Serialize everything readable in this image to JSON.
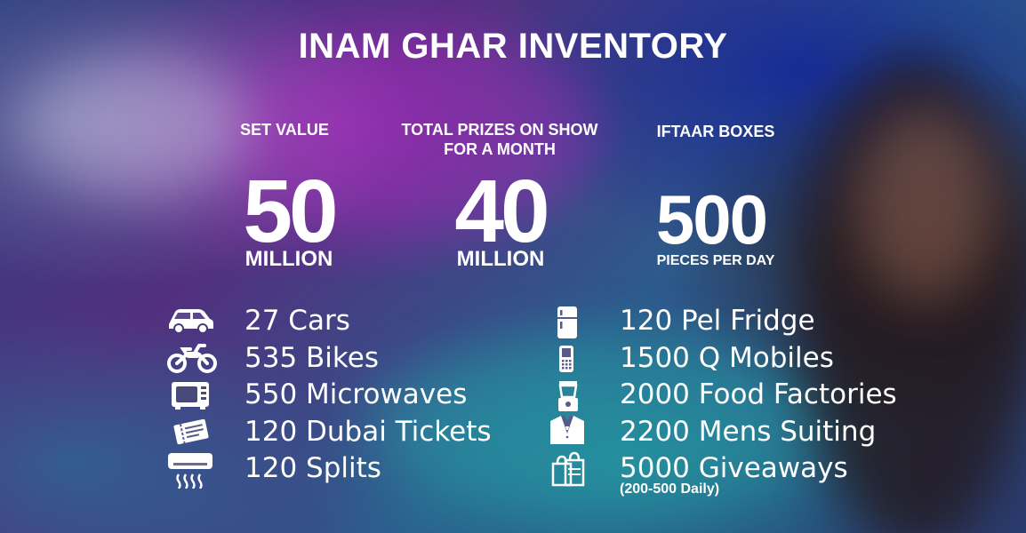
{
  "title": "INAM GHAR INVENTORY",
  "stats": [
    {
      "label": "SET VALUE",
      "number": "50",
      "unit": "MILLION"
    },
    {
      "label_line1": "TOTAL PRIZES ON SHOW",
      "label_line2": "FOR A MONTH",
      "number": "40",
      "unit": "MILLION"
    },
    {
      "label": "IFTAAR BOXES",
      "number": "500",
      "unit": "PIECES PER DAY"
    }
  ],
  "left_items": [
    {
      "text": "27 Cars",
      "icon": "car-icon"
    },
    {
      "text": "535 Bikes",
      "icon": "bike-icon"
    },
    {
      "text": "550 Microwaves",
      "icon": "microwave-icon"
    },
    {
      "text": "120 Dubai Tickets",
      "icon": "ticket-icon"
    },
    {
      "text": "120 Splits",
      "icon": "air-conditioner-icon"
    }
  ],
  "right_items": [
    {
      "text": "120 Pel Fridge",
      "icon": "fridge-icon"
    },
    {
      "text": "1500 Q Mobiles",
      "icon": "mobile-phone-icon"
    },
    {
      "text": "2000 Food Factories",
      "icon": "food-factory-icon"
    },
    {
      "text": "2200 Mens Suiting",
      "icon": "suit-icon"
    },
    {
      "text": "5000 Giveaways",
      "icon": "shopping-bags-icon",
      "note": "(200-500 Daily)"
    }
  ],
  "colors": {
    "text": "#ffffff",
    "icon": "#ffffff"
  }
}
